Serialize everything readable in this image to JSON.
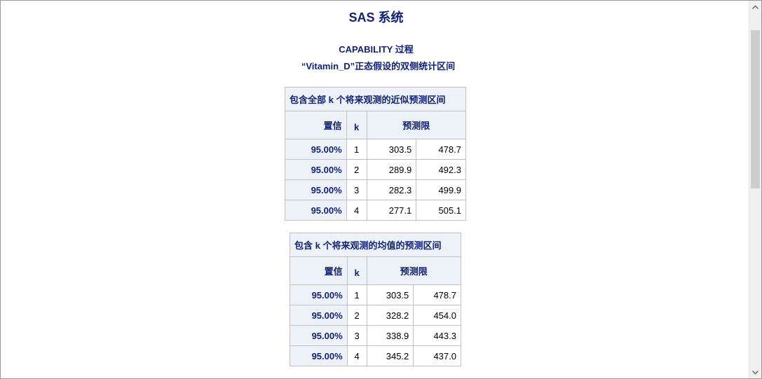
{
  "system_title": "SAS 系统",
  "procedure_title": "CAPABILITY 过程",
  "procedure_subtitle": "“Vitamin_D”正态假设的双侧统计区间",
  "table1": {
    "caption": "包含全部 k 个将来观测的近似预测区间",
    "headers": {
      "confidence": "置信",
      "k": "k",
      "limits": "预测限"
    },
    "rows": [
      {
        "confidence": "95.00%",
        "k": "1",
        "lower": "303.5",
        "upper": "478.7"
      },
      {
        "confidence": "95.00%",
        "k": "2",
        "lower": "289.9",
        "upper": "492.3"
      },
      {
        "confidence": "95.00%",
        "k": "3",
        "lower": "282.3",
        "upper": "499.9"
      },
      {
        "confidence": "95.00%",
        "k": "4",
        "lower": "277.1",
        "upper": "505.1"
      }
    ]
  },
  "table2": {
    "caption": "包含 k 个将来观测的均值的预测区间",
    "headers": {
      "confidence": "置信",
      "k": "k",
      "limits": "预测限"
    },
    "rows": [
      {
        "confidence": "95.00%",
        "k": "1",
        "lower": "303.5",
        "upper": "478.7"
      },
      {
        "confidence": "95.00%",
        "k": "2",
        "lower": "328.2",
        "upper": "454.0"
      },
      {
        "confidence": "95.00%",
        "k": "3",
        "lower": "338.9",
        "upper": "443.3"
      },
      {
        "confidence": "95.00%",
        "k": "4",
        "lower": "345.2",
        "upper": "437.0"
      }
    ]
  },
  "scrollbar": {
    "up_icon": "chevron-up-icon",
    "down_icon": "chevron-down-icon"
  },
  "colors": {
    "header_text": "#112277",
    "header_bg": "#edf2f9",
    "border": "#c1c1c1"
  }
}
